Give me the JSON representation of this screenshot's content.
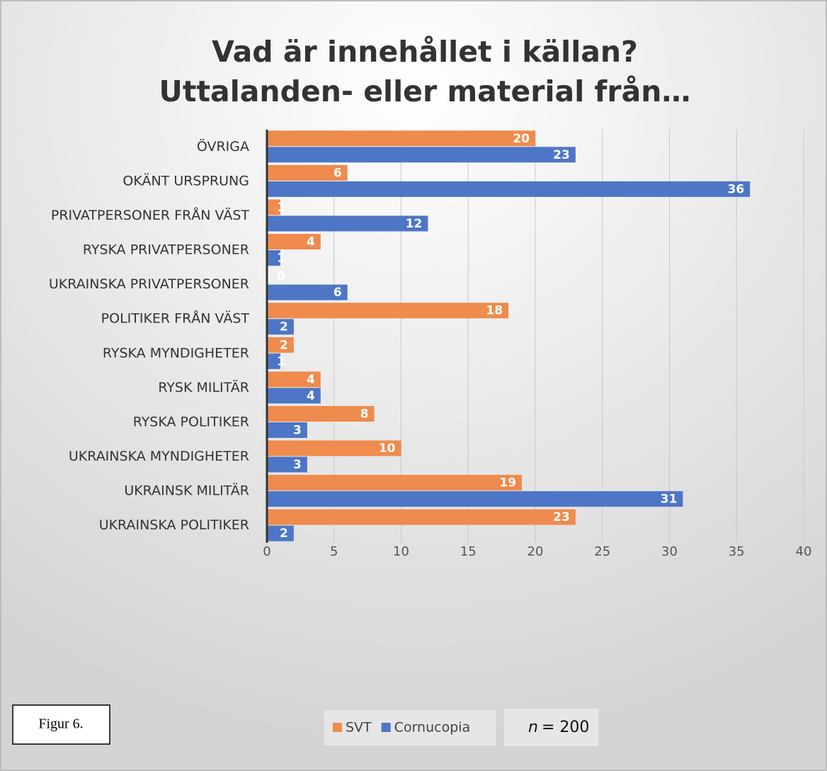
{
  "chart_data": {
    "type": "hbar",
    "title": "Vad är innehållet i källan?",
    "subtitle": "Uttalanden- eller material från…",
    "categories": [
      "ÖVRIGA",
      "OKÄNT URSPRUNG",
      "PRIVATPERSONER FRÅN VÄST",
      "RYSKA PRIVATPERSONER",
      "UKRAINSKA PRIVATPERSONER",
      "POLITIKER FRÅN VÄST",
      "RYSKA MYNDIGHETER",
      "RYSK MILITÄR",
      "RYSKA POLITIKER",
      "UKRAINSKA MYNDIGHETER",
      "UKRAINSK MILITÄR",
      "UKRAINSKA POLITIKER"
    ],
    "series": [
      {
        "name": "SVT",
        "color": "#ee8b4d",
        "values": [
          20,
          6,
          1,
          4,
          0,
          18,
          2,
          4,
          8,
          10,
          19,
          23
        ]
      },
      {
        "name": "Cornucopia",
        "color": "#4e76c6",
        "values": [
          23,
          36,
          12,
          1,
          6,
          2,
          1,
          4,
          3,
          3,
          31,
          2
        ]
      }
    ],
    "xlim": [
      0,
      40
    ],
    "xticks": [
      0,
      5,
      10,
      15,
      20,
      25,
      30,
      35,
      40
    ],
    "grid": true,
    "legend": "bottom",
    "figure_label": "Figur 6.",
    "sample": {
      "symbol": "n",
      "text": "= 200"
    }
  }
}
